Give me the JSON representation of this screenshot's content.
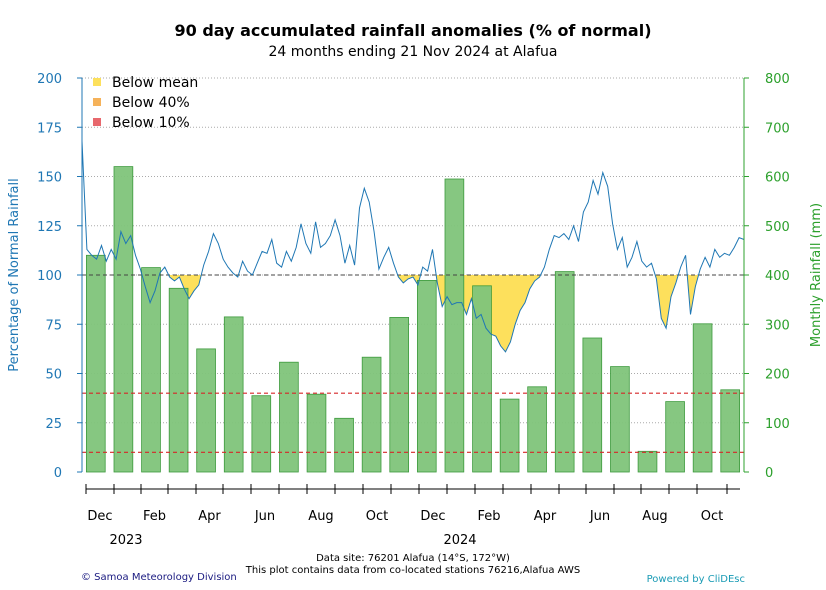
{
  "chart_data": {
    "type": "bar+line",
    "title": "90 day accumulated rainfall anomalies (% of normal)",
    "subtitle": "24 months ending 21 Nov 2024 at Alafua",
    "ylabel_left": "Percentage of Normal Rainfall",
    "ylabel_right": "Monthly Rainfall (mm)",
    "ylim_left": [
      0,
      200
    ],
    "ylim_right": [
      0,
      800
    ],
    "yticks_left": [
      0,
      25,
      50,
      75,
      100,
      125,
      150,
      175,
      200
    ],
    "yticks_right": [
      0,
      100,
      200,
      300,
      400,
      500,
      600,
      700,
      800
    ],
    "reference_lines": [
      {
        "name": "mean",
        "value": 100,
        "color": "#444444"
      },
      {
        "name": "40%",
        "value": 40,
        "color": "#d62728"
      },
      {
        "name": "10%",
        "value": 10,
        "color": "#d62728"
      }
    ],
    "month_labels": [
      "Dec",
      "Feb",
      "Apr",
      "Jun",
      "Aug",
      "Oct",
      "Dec",
      "Feb",
      "Apr",
      "Jun",
      "Aug",
      "Oct"
    ],
    "year_labels": [
      "2023",
      "2024"
    ],
    "monthly_rainfall": {
      "name": "Monthly Rainfall (mm)",
      "color": "#7fc47a",
      "months": [
        "Dec 2022",
        "Jan 2023",
        "Feb 2023",
        "Mar 2023",
        "Apr 2023",
        "May 2023",
        "Jun 2023",
        "Jul 2023",
        "Aug 2023",
        "Sep 2023",
        "Oct 2023",
        "Nov 2023",
        "Dec 2023",
        "Jan 2024",
        "Feb 2024",
        "Mar 2024",
        "Apr 2024",
        "May 2024",
        "Jun 2024",
        "Jul 2024",
        "Aug 2024",
        "Sep 2024",
        "Oct 2024",
        "Nov 2024"
      ],
      "values": [
        440,
        620,
        415,
        373,
        250,
        315,
        155,
        223,
        158,
        109,
        233,
        314,
        389,
        595,
        378,
        148,
        173,
        407,
        272,
        214,
        42,
        143,
        301,
        167
      ]
    },
    "anomaly_series": {
      "name": "90 day rainfall anomaly (% of normal)",
      "color": "#1f77b4",
      "points": [
        [
          0,
          168
        ],
        [
          0.5,
          113
        ],
        [
          1,
          110
        ],
        [
          1.5,
          108
        ],
        [
          2,
          115
        ],
        [
          2.5,
          107
        ],
        [
          3,
          113
        ],
        [
          3.5,
          108
        ],
        [
          4,
          122
        ],
        [
          4.5,
          116
        ],
        [
          5,
          120
        ],
        [
          5.5,
          110
        ],
        [
          6,
          103
        ],
        [
          6.5,
          94
        ],
        [
          7,
          86
        ],
        [
          7.5,
          92
        ],
        [
          8,
          101
        ],
        [
          8.5,
          104
        ],
        [
          9,
          99
        ],
        [
          9.5,
          97
        ],
        [
          10,
          99
        ],
        [
          10.5,
          93
        ],
        [
          11,
          88
        ],
        [
          11.5,
          92
        ],
        [
          12,
          95
        ],
        [
          12.5,
          105
        ],
        [
          13,
          112
        ],
        [
          13.5,
          121
        ],
        [
          14,
          116
        ],
        [
          14.5,
          108
        ],
        [
          15,
          104
        ],
        [
          15.5,
          101
        ],
        [
          16,
          99
        ],
        [
          16.5,
          107
        ],
        [
          17,
          102
        ],
        [
          17.5,
          100
        ],
        [
          18,
          106
        ],
        [
          18.5,
          112
        ],
        [
          19,
          111
        ],
        [
          19.5,
          118
        ],
        [
          20,
          106
        ],
        [
          20.5,
          104
        ],
        [
          21,
          112
        ],
        [
          21.5,
          107
        ],
        [
          22,
          114
        ],
        [
          22.5,
          126
        ],
        [
          23,
          116
        ],
        [
          23.5,
          111
        ],
        [
          24,
          127
        ],
        [
          24.5,
          114
        ],
        [
          25,
          116
        ],
        [
          25.5,
          120
        ],
        [
          26,
          128
        ],
        [
          26.5,
          120
        ],
        [
          27,
          106
        ],
        [
          27.5,
          115
        ],
        [
          28,
          105
        ],
        [
          28.5,
          134
        ],
        [
          29,
          144
        ],
        [
          29.5,
          137
        ],
        [
          30,
          122
        ],
        [
          30.5,
          103
        ],
        [
          31,
          109
        ],
        [
          31.5,
          114
        ],
        [
          32,
          106
        ],
        [
          32.5,
          99
        ],
        [
          33,
          96
        ],
        [
          33.5,
          98
        ],
        [
          34,
          99
        ],
        [
          34.5,
          95
        ],
        [
          35,
          104
        ],
        [
          35.5,
          102
        ],
        [
          36,
          113
        ],
        [
          36.5,
          96
        ],
        [
          37,
          84
        ],
        [
          37.5,
          89
        ],
        [
          38,
          85
        ],
        [
          38.5,
          86
        ],
        [
          39,
          86
        ],
        [
          39.5,
          80
        ],
        [
          40,
          88
        ],
        [
          40.5,
          78
        ],
        [
          41,
          80
        ],
        [
          41.5,
          73
        ],
        [
          42,
          70
        ],
        [
          42.5,
          69
        ],
        [
          43,
          64
        ],
        [
          43.5,
          61
        ],
        [
          44,
          66
        ],
        [
          44.5,
          75
        ],
        [
          45,
          82
        ],
        [
          45.5,
          86
        ],
        [
          46,
          93
        ],
        [
          46.5,
          97
        ],
        [
          47,
          99
        ],
        [
          47.5,
          104
        ],
        [
          48,
          113
        ],
        [
          48.5,
          120
        ],
        [
          49,
          119
        ],
        [
          49.5,
          121
        ],
        [
          50,
          118
        ],
        [
          50.5,
          125
        ],
        [
          51,
          117
        ],
        [
          51.5,
          132
        ],
        [
          52,
          137
        ],
        [
          52.5,
          148
        ],
        [
          53,
          141
        ],
        [
          53.5,
          152
        ],
        [
          54,
          145
        ],
        [
          54.5,
          126
        ],
        [
          55,
          113
        ],
        [
          55.5,
          119
        ],
        [
          56,
          104
        ],
        [
          56.5,
          109
        ],
        [
          57,
          117
        ],
        [
          57.5,
          107
        ],
        [
          58,
          104
        ],
        [
          58.5,
          106
        ],
        [
          59,
          98
        ],
        [
          59.5,
          78
        ],
        [
          60,
          73
        ],
        [
          60.5,
          89
        ],
        [
          61,
          96
        ],
        [
          61.5,
          104
        ],
        [
          62,
          110
        ],
        [
          62.5,
          80
        ],
        [
          63,
          94
        ],
        [
          63.5,
          103
        ],
        [
          64,
          109
        ],
        [
          64.5,
          104
        ],
        [
          65,
          113
        ],
        [
          65.5,
          109
        ],
        [
          66,
          111
        ],
        [
          66.5,
          110
        ],
        [
          67,
          114
        ],
        [
          67.5,
          119
        ],
        [
          68,
          118
        ]
      ]
    },
    "legend": {
      "position": "top-left",
      "items": [
        {
          "label": "Below mean",
          "color": "#fde05c"
        },
        {
          "label": "Below 40%",
          "color": "#f5b25a"
        },
        {
          "label": "Below 10%",
          "color": "#e8686d"
        }
      ]
    }
  },
  "footer": {
    "data_site": "Data site: 76201 Alafua (14°S, 172°W)",
    "co_located": "This plot contains data from co-located stations 76216,Alafua AWS",
    "credit_left": "© Samoa Meteorology Division",
    "credit_right": "Powered by CliDEsc"
  }
}
